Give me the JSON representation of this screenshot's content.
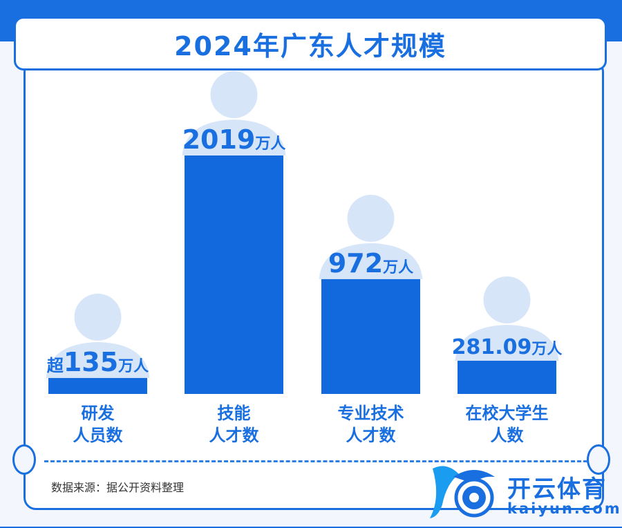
{
  "title": "2024年广东人才规模",
  "source": "数据来源：据公开资料整理",
  "watermark": {
    "brand_cn": "开云体育",
    "brand_en": "kaiyun.com"
  },
  "colors": {
    "bar": "#1268dd",
    "accent": "#1a6fe0",
    "person": "#d6e6f8"
  },
  "chart_data": {
    "type": "bar",
    "title": "2024年广东人才规模",
    "categories": [
      "研发人员数",
      "技能人才数",
      "专业技术人才数",
      "在校大学生人数"
    ],
    "category_lines": [
      [
        "研发",
        "人员数"
      ],
      [
        "技能",
        "人才数"
      ],
      [
        "专业技术",
        "人才数"
      ],
      [
        "在校大学生",
        "人数"
      ]
    ],
    "values": [
      135,
      2019,
      972,
      281.09
    ],
    "value_prefix": [
      "超",
      "",
      "",
      ""
    ],
    "value_labels": [
      "135",
      "2019",
      "972",
      "281.09"
    ],
    "unit": "万人",
    "ylim": [
      0,
      2019
    ],
    "grid": false,
    "legend": "none"
  }
}
